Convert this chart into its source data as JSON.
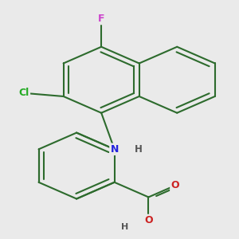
{
  "background_color": "#eaeaea",
  "bond_color": "#2d6b2d",
  "bond_width": 1.5,
  "atom_colors": {
    "F": "#cc44cc",
    "Cl": "#22aa22",
    "N": "#2222dd",
    "O": "#cc2222",
    "H": "#555555",
    "C": "#2d6b2d"
  }
}
